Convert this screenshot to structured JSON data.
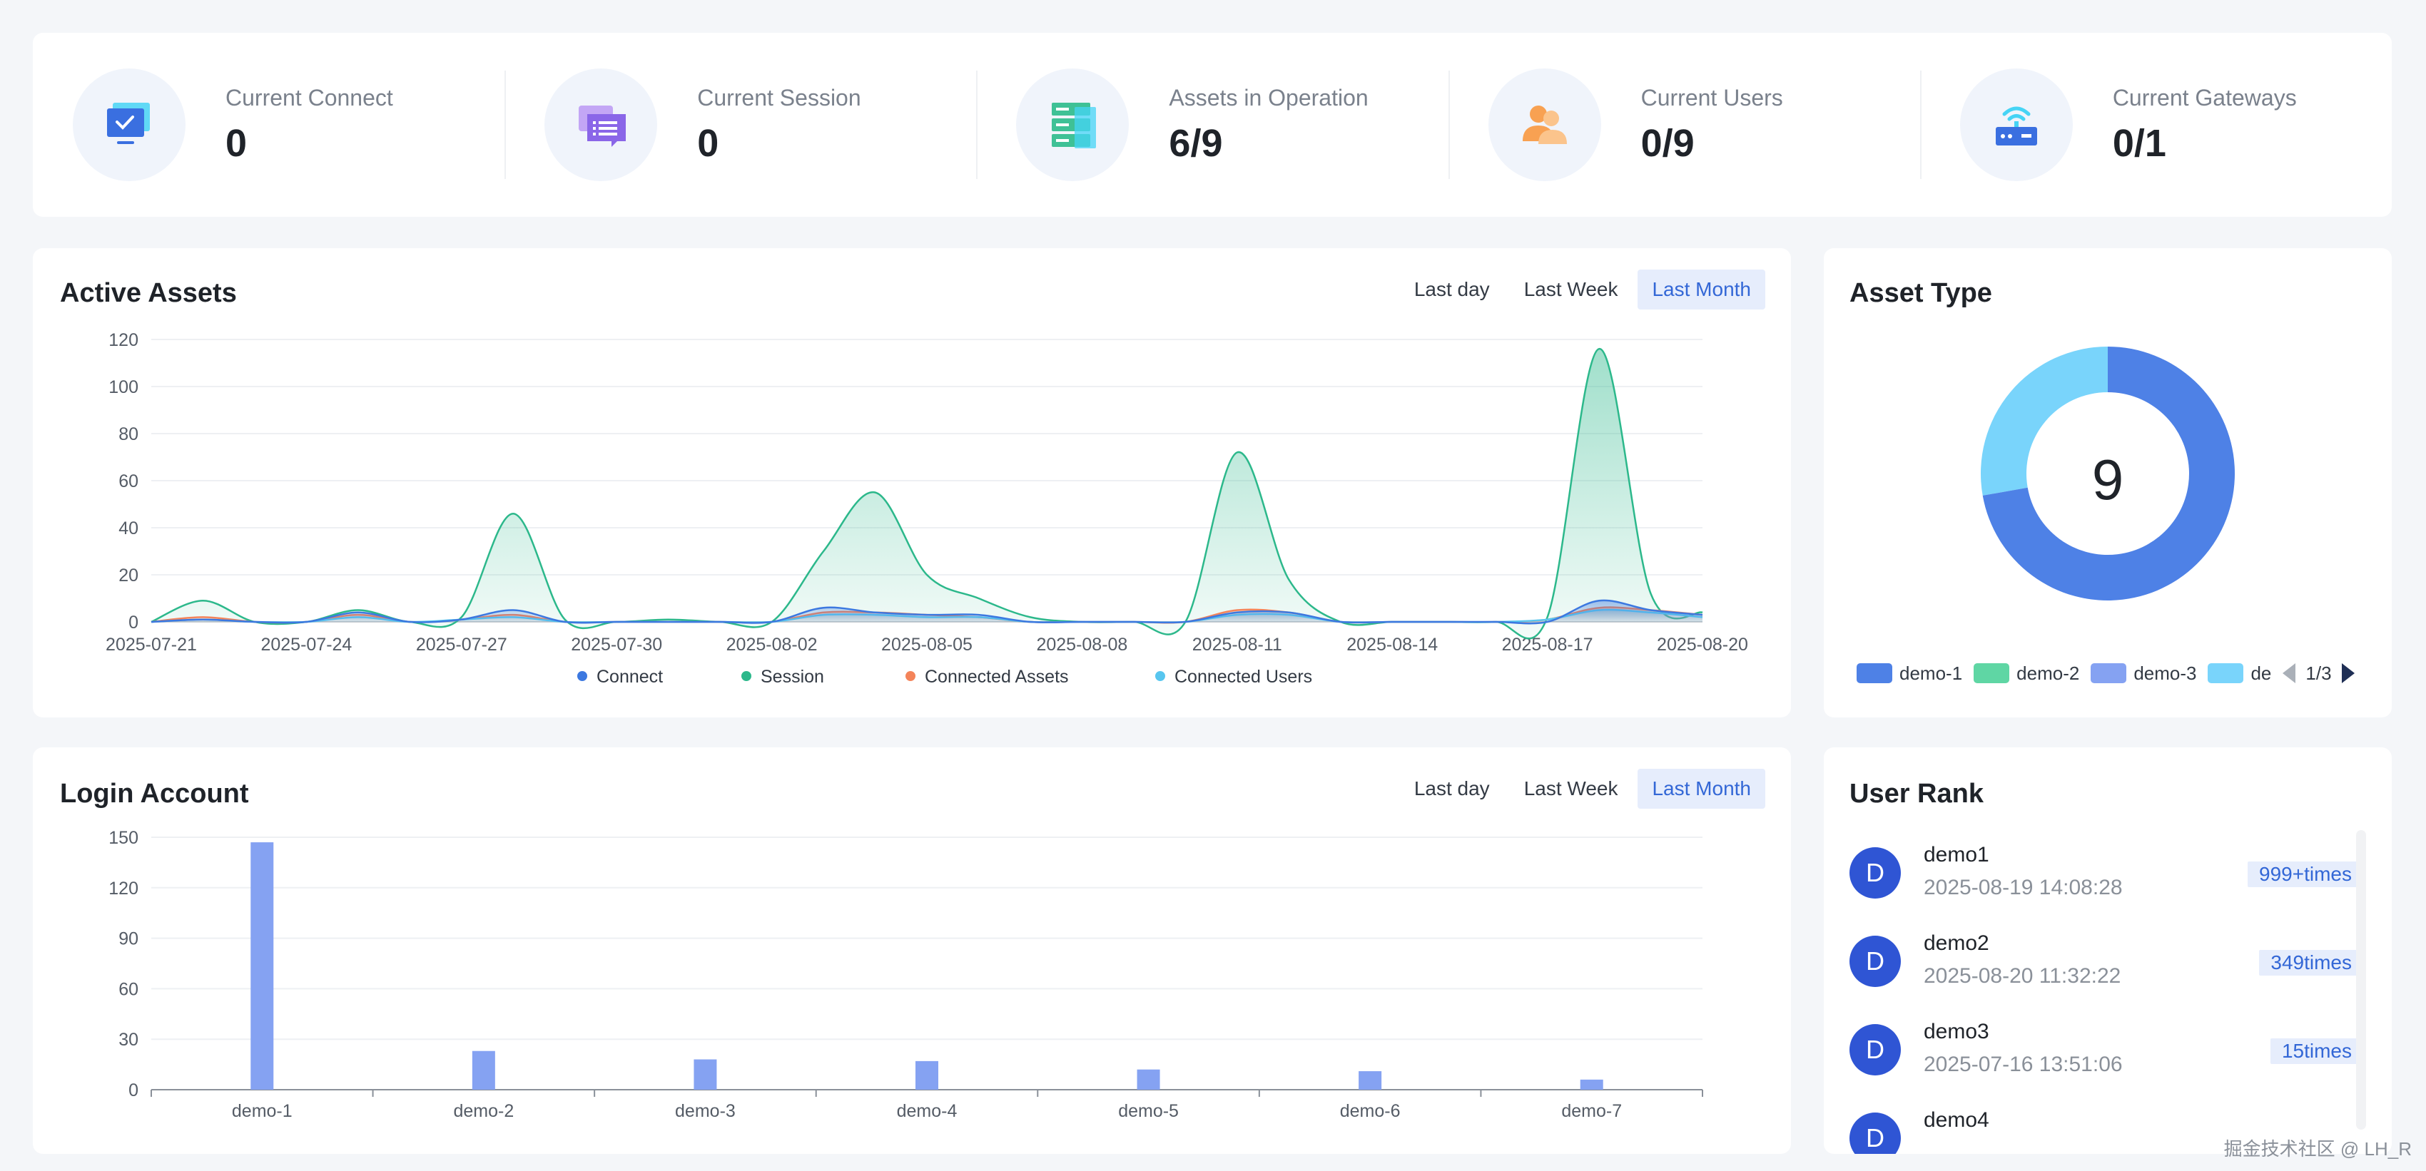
{
  "stats": [
    {
      "label": "Current Connect",
      "value": "0",
      "icon": "monitor-check-icon"
    },
    {
      "label": "Current Session",
      "value": "0",
      "icon": "chat-list-icon"
    },
    {
      "label": "Assets in Operation",
      "value": "6/9",
      "icon": "server-icon"
    },
    {
      "label": "Current Users",
      "value": "0/9",
      "icon": "users-icon"
    },
    {
      "label": "Current Gateways",
      "value": "0/1",
      "icon": "router-icon"
    }
  ],
  "active_assets": {
    "title": "Active Assets",
    "tabs": [
      "Last day",
      "Last Week",
      "Last Month"
    ],
    "active_tab": "Last Month"
  },
  "asset_type": {
    "title": "Asset Type",
    "total": "9",
    "legend": [
      "demo-1",
      "demo-2",
      "demo-3",
      "de"
    ],
    "legend_colors": [
      "#4e81e6",
      "#5fd6a4",
      "#85a2f2",
      "#79d4fb"
    ],
    "pager": "1/3"
  },
  "login_account": {
    "title": "Login Account",
    "tabs": [
      "Last day",
      "Last Week",
      "Last Month"
    ],
    "active_tab": "Last Month"
  },
  "user_rank": {
    "title": "User Rank",
    "users": [
      {
        "avatar": "D",
        "name": "demo1",
        "time": "2025-08-19 14:08:28",
        "count": "999+times"
      },
      {
        "avatar": "D",
        "name": "demo2",
        "time": "2025-08-20 11:32:22",
        "count": "349times"
      },
      {
        "avatar": "D",
        "name": "demo3",
        "time": "2025-07-16 13:51:06",
        "count": "15times"
      },
      {
        "avatar": "D",
        "name": "demo4",
        "time": "",
        "count": ""
      }
    ]
  },
  "watermark": "掘金技术社区 @ LH_R",
  "chart_data": [
    {
      "type": "area",
      "title": "Active Assets",
      "x": [
        "2025-07-21",
        "2025-07-22",
        "2025-07-23",
        "2025-07-24",
        "2025-07-25",
        "2025-07-26",
        "2025-07-27",
        "2025-07-28",
        "2025-07-29",
        "2025-07-30",
        "2025-07-31",
        "2025-08-01",
        "2025-08-02",
        "2025-08-03",
        "2025-08-04",
        "2025-08-05",
        "2025-08-06",
        "2025-08-07",
        "2025-08-08",
        "2025-08-09",
        "2025-08-10",
        "2025-08-11",
        "2025-08-12",
        "2025-08-13",
        "2025-08-14",
        "2025-08-15",
        "2025-08-16",
        "2025-08-17",
        "2025-08-18",
        "2025-08-19",
        "2025-08-20"
      ],
      "x_ticks": [
        "2025-07-21",
        "2025-07-24",
        "2025-07-27",
        "2025-07-30",
        "2025-08-02",
        "2025-08-05",
        "2025-08-08",
        "2025-08-11",
        "2025-08-14",
        "2025-08-17",
        "2025-08-20"
      ],
      "ylim": [
        0,
        120
      ],
      "y_ticks": [
        0,
        20,
        40,
        60,
        80,
        100,
        120
      ],
      "legend_position": "bottom",
      "series": [
        {
          "name": "Connect",
          "color": "#3c78e0",
          "values": [
            0,
            1,
            0,
            0,
            4,
            0,
            1,
            5,
            0,
            0,
            0,
            0,
            0,
            6,
            4,
            3,
            3,
            0,
            0,
            0,
            0,
            4,
            4,
            0,
            0,
            0,
            0,
            0,
            9,
            5,
            3
          ]
        },
        {
          "name": "Session",
          "color": "#2cb88b",
          "values": [
            0,
            9,
            0,
            0,
            5,
            0,
            2,
            46,
            1,
            0,
            1,
            0,
            0,
            30,
            55,
            20,
            10,
            2,
            0,
            0,
            0,
            72,
            18,
            0,
            0,
            0,
            0,
            2,
            116,
            12,
            4
          ]
        },
        {
          "name": "Connected Assets",
          "color": "#f4845a",
          "values": [
            0,
            2,
            0,
            0,
            3,
            0,
            1,
            3,
            0,
            0,
            0,
            0,
            0,
            4,
            4,
            3,
            2,
            0,
            0,
            0,
            0,
            5,
            4,
            0,
            0,
            0,
            0,
            1,
            6,
            5,
            3
          ]
        },
        {
          "name": "Connected Users",
          "color": "#58c6ef",
          "values": [
            0,
            1,
            0,
            0,
            2,
            0,
            1,
            2,
            0,
            0,
            0,
            0,
            0,
            3,
            3,
            2,
            2,
            0,
            0,
            0,
            0,
            3,
            3,
            0,
            0,
            0,
            0,
            1,
            5,
            4,
            2
          ]
        }
      ]
    },
    {
      "type": "bar",
      "title": "Login Account",
      "categories": [
        "demo-1",
        "demo-2",
        "demo-3",
        "demo-4",
        "demo-5",
        "demo-6",
        "demo-7"
      ],
      "values": [
        147,
        23,
        18,
        17,
        12,
        11,
        6
      ],
      "ylim": [
        0,
        150
      ],
      "y_ticks": [
        0,
        30,
        60,
        90,
        120,
        150
      ],
      "color": "#85a2f2"
    },
    {
      "type": "pie",
      "title": "Asset Type",
      "labels": [
        "demo-1",
        "de"
      ],
      "values": [
        6.5,
        2.5
      ],
      "colors": [
        "#4e81e6",
        "#79d4fb"
      ]
    }
  ]
}
